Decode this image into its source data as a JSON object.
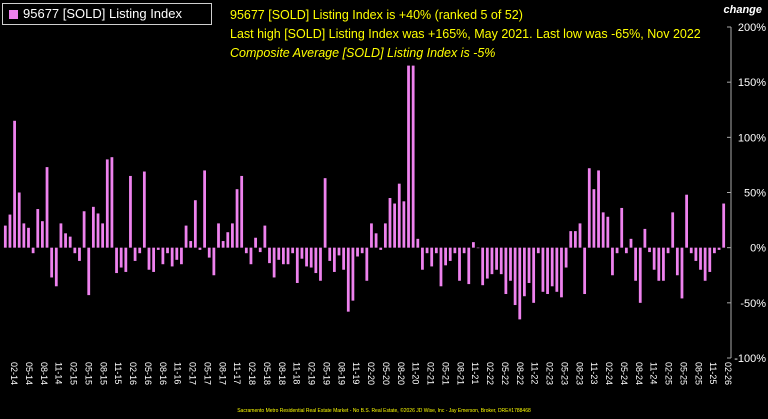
{
  "legend": {
    "label": "95677 [SOLD] Listing Index",
    "color": "#ee82ee"
  },
  "annotations": {
    "line1": "95677 [SOLD] Listing Index is +40% (ranked 5 of 52)",
    "line2": "Last high [SOLD] Listing Index was +165%, May 2021. Last low was -65%, Nov 2022",
    "line3": "Composite Average [SOLD] Listing Index is -5%"
  },
  "y_axis_title": "change",
  "footer": "Sacramento Metro Residential Real Estate Market - No B.S. Real Estate, ©2026 JD Wise, Inc - Jay Emerson, Broker, DRE#1788468",
  "colors": {
    "background": "#000000",
    "bar": "#ee82ee",
    "annotation": "#ffff00",
    "axis": "#ffffff"
  },
  "chart_data": {
    "type": "bar",
    "ylim": [
      -100,
      200
    ],
    "yticks": [
      -100,
      -50,
      0,
      50,
      100,
      150,
      200
    ],
    "ytick_labels": [
      "-100%",
      "-50%",
      "0%",
      "50%",
      "100%",
      "150%",
      "200%"
    ],
    "grid": false,
    "legend_position": "top-left",
    "xtick_labels": [
      "02-14",
      "05-14",
      "08-14",
      "11-14",
      "02-15",
      "05-15",
      "08-15",
      "11-15",
      "02-16",
      "05-16",
      "08-16",
      "11-16",
      "02-17",
      "05-17",
      "08-17",
      "11-17",
      "02-18",
      "05-18",
      "08-18",
      "11-18",
      "02-19",
      "05-19",
      "08-19",
      "11-19",
      "02-20",
      "05-20",
      "08-20",
      "11-20",
      "02-21",
      "05-21",
      "08-21",
      "11-21",
      "02-22",
      "05-22",
      "08-22",
      "11-22",
      "02-23",
      "05-23",
      "08-23",
      "11-23",
      "02-24",
      "05-24",
      "08-24",
      "11-24",
      "02-25",
      "05-25",
      "08-25",
      "11-25",
      "02-26"
    ],
    "series": [
      {
        "name": "95677 [SOLD] Listing Index",
        "values": [
          20,
          30,
          115,
          50,
          22,
          18,
          -5,
          35,
          24,
          73,
          -27,
          -35,
          22,
          13,
          10,
          -5,
          -12,
          33,
          -43,
          37,
          31,
          22,
          80,
          82,
          -23,
          -18,
          -22,
          65,
          -12,
          -5,
          69,
          -20,
          -22,
          -2,
          -15,
          -5,
          -17,
          -11,
          -15,
          20,
          6,
          43,
          -2,
          70,
          -9,
          -25,
          22,
          6,
          14,
          22,
          53,
          65,
          -5,
          -15,
          9,
          -4,
          20,
          -14,
          -27,
          -11,
          -15,
          -15,
          -5,
          -32,
          -10,
          -17,
          -18,
          -23,
          -30,
          63,
          -12,
          -22,
          -7,
          -20,
          -58,
          -48,
          -8,
          -5,
          -30,
          22,
          13,
          -2,
          22,
          45,
          40,
          58,
          42,
          165,
          165,
          8,
          -20,
          -5,
          -17,
          -5,
          -35,
          -16,
          -12,
          -5,
          -30,
          -5,
          -33,
          5,
          0,
          -34,
          -28,
          -24,
          -20,
          -24,
          -42,
          -30,
          -52,
          -65,
          -44,
          -32,
          -50,
          -5,
          -40,
          -42,
          -35,
          -40,
          -45,
          -18,
          15,
          15,
          22,
          -42,
          72,
          53,
          70,
          32,
          28,
          -25,
          -5,
          36,
          -5,
          8,
          -30,
          -50,
          17,
          -4,
          -20,
          -30,
          -30,
          -5,
          32,
          -25,
          -46,
          48,
          -5,
          -12,
          -20,
          -30,
          -22,
          -5,
          -2,
          40
        ]
      }
    ]
  }
}
